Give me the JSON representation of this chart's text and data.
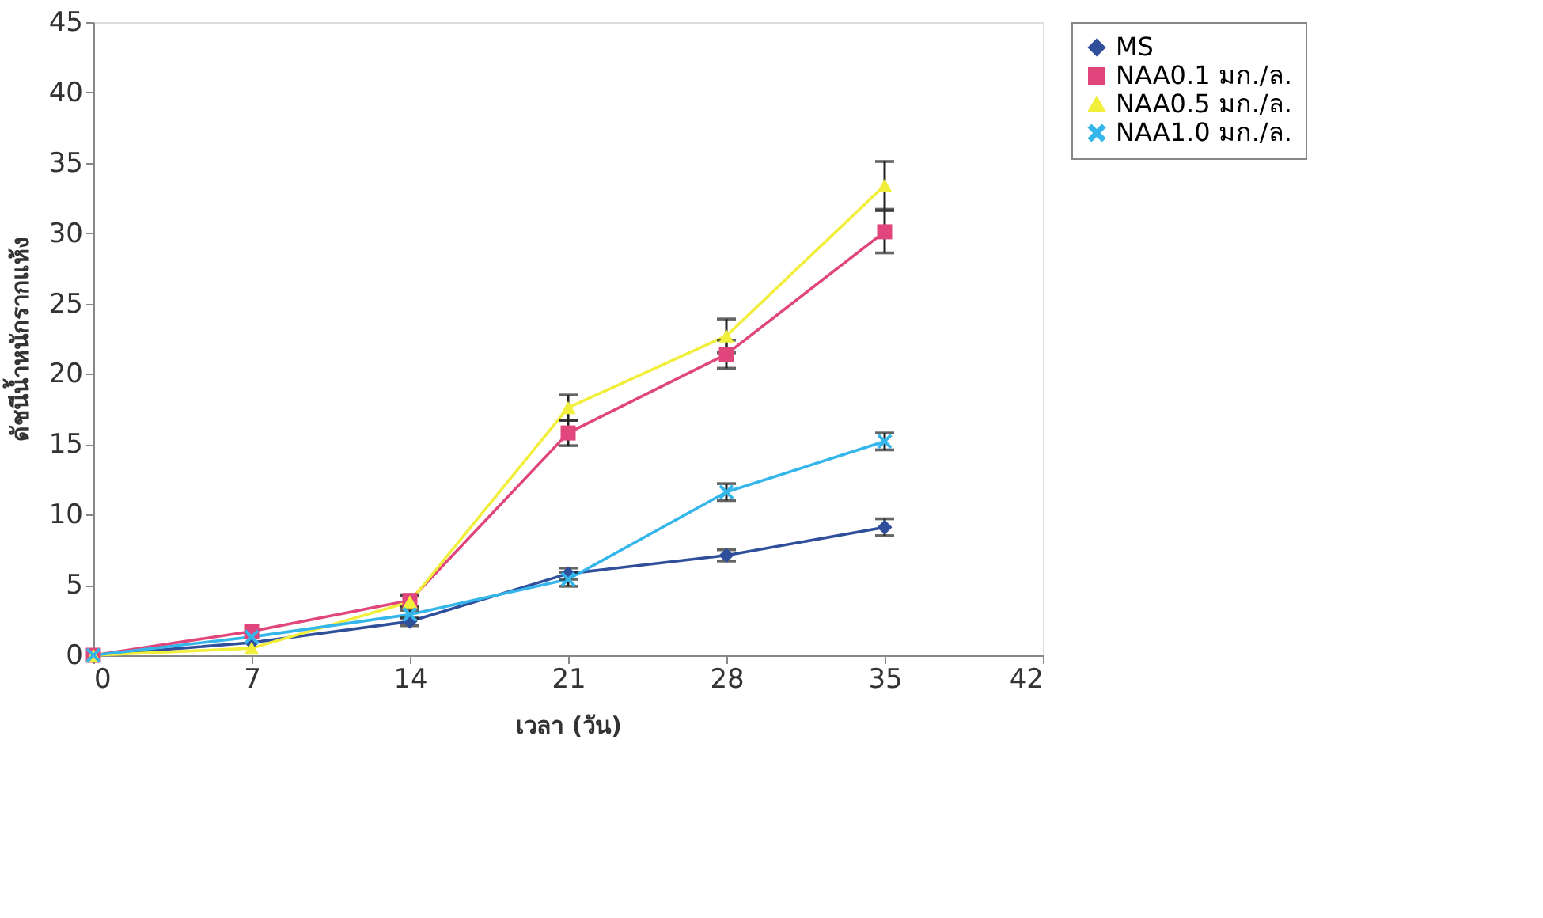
{
  "chart_data": {
    "type": "line",
    "xlabel": "เวลา (วัน)",
    "ylabel": "ดัชนีน้ำหนักรากแห้ง",
    "x": [
      0,
      7,
      14,
      21,
      28,
      35
    ],
    "xlim": [
      0,
      42
    ],
    "xticks": [
      0,
      7,
      14,
      21,
      28,
      35,
      42
    ],
    "ylim": [
      0,
      45
    ],
    "yticks": [
      0,
      5,
      10,
      15,
      20,
      25,
      30,
      35,
      40,
      45
    ],
    "grid": false,
    "legend": "right",
    "line_style": "solid",
    "series": [
      {
        "name": "MS",
        "color": "#2f4f9a",
        "marker": "diamond",
        "values": [
          0,
          0.9,
          2.4,
          5.8,
          7.1,
          9.1
        ],
        "errors": [
          null,
          null,
          0.3,
          0.4,
          0.4,
          0.6
        ]
      },
      {
        "name": "NAA0.1 มก./ล.",
        "color": "#e0457b",
        "marker": "square",
        "values": [
          0,
          1.7,
          3.9,
          15.8,
          21.4,
          30.1
        ],
        "errors": [
          null,
          null,
          0.4,
          0.9,
          1.0,
          1.5
        ]
      },
      {
        "name": "NAA0.5 มก./ล.",
        "color": "#f2ee3c",
        "marker": "triangle",
        "values": [
          0,
          0.5,
          3.8,
          17.6,
          22.7,
          33.4
        ],
        "errors": [
          null,
          null,
          0.4,
          0.9,
          1.2,
          1.7
        ]
      },
      {
        "name": "NAA1.0 มก./ล.",
        "color": "#35b6ea",
        "marker": "cross",
        "values": [
          0,
          1.3,
          2.9,
          5.4,
          11.6,
          15.2
        ],
        "errors": [
          null,
          null,
          0.3,
          0.5,
          0.6,
          0.6
        ]
      }
    ]
  }
}
